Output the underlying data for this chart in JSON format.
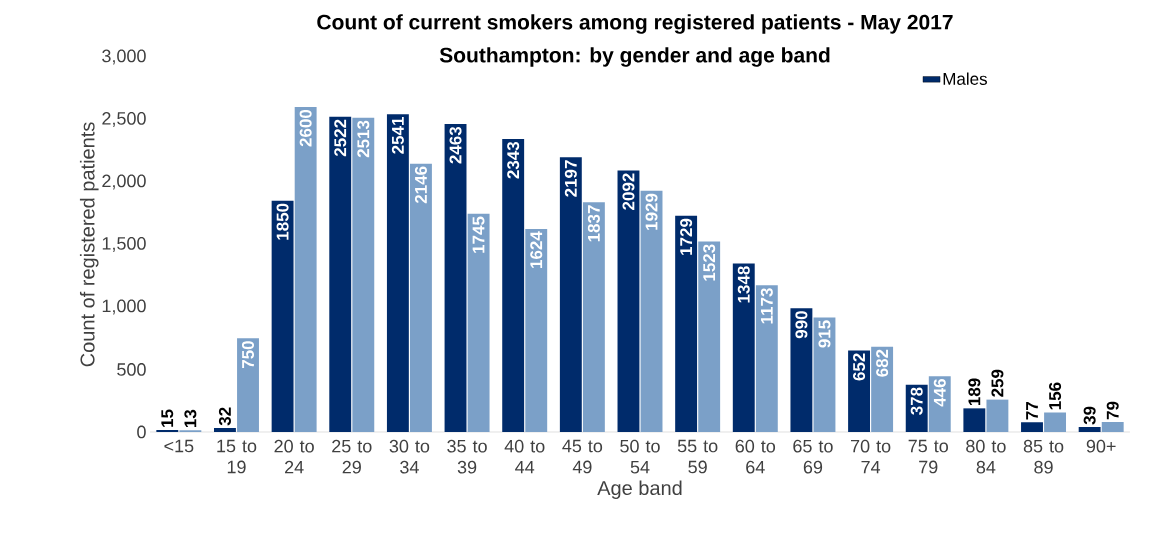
{
  "chart_data": {
    "type": "bar",
    "title": "Count of current smokers among registered patients - May 2017",
    "subtitle": "Southampton: by gender and age band",
    "xlabel": "Age band",
    "ylabel": "Count of registered patients",
    "categories": [
      "<15",
      "15 to 19",
      "20 to 24",
      "25 to 29",
      "30 to 34",
      "35 to 39",
      "40 to 44",
      "45 to 49",
      "50 to 54",
      "55 to 59",
      "60 to 64",
      "65 to 69",
      "70 to 74",
      "75 to 79",
      "80 to 84",
      "85 to 89",
      "90+"
    ],
    "series": [
      {
        "name": "Males",
        "color": "#002b6b",
        "values": [
          15,
          32,
          1850,
          2522,
          2541,
          2463,
          2343,
          2197,
          2092,
          1729,
          1348,
          990,
          652,
          378,
          189,
          77,
          39
        ]
      },
      {
        "color": "#7ba0c8",
        "values": [
          13,
          750,
          2600,
          2513,
          2146,
          1745,
          1624,
          1837,
          1929,
          1523,
          1173,
          915,
          682,
          446,
          259,
          156,
          79
        ]
      }
    ],
    "ylim": [
      0,
      3000
    ],
    "yticks": [
      0,
      500,
      {
        "value": 1000,
        "label": "1,000"
      },
      {
        "value": 1500,
        "label": "1,500"
      },
      {
        "value": 2000,
        "label": "2,000"
      },
      {
        "value": 2500,
        "label": "2,500"
      },
      {
        "value": 3000,
        "label": "3,000"
      }
    ],
    "data_labels": true,
    "legend": "top right",
    "grid": false
  }
}
